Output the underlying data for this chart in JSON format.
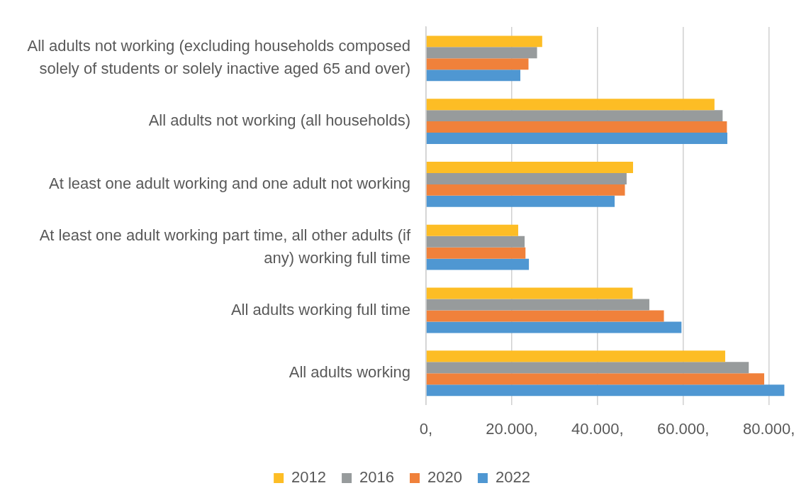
{
  "chart_data": {
    "type": "bar",
    "orientation": "horizontal",
    "categories": [
      "All adults not working (excluding households composed solely of students or solely inactive aged 65 and over)",
      "All adults not working (all households)",
      "At least one adult working and one adult not working",
      "At least one adult working part time, all other adults (if any) working full time",
      "All adults working full time",
      "All adults working"
    ],
    "series": [
      {
        "name": "2012",
        "color": "#fdbd25",
        "values": [
          27100,
          67300,
          48300,
          21500,
          48200,
          69800
        ]
      },
      {
        "name": "2016",
        "color": "#979b9c",
        "values": [
          25900,
          69200,
          46800,
          23000,
          52100,
          75300
        ]
      },
      {
        "name": "2020",
        "color": "#f0813b",
        "values": [
          23900,
          70200,
          46400,
          23200,
          55500,
          78900
        ]
      },
      {
        "name": "2022",
        "color": "#4f97d2",
        "values": [
          22000,
          70300,
          44000,
          24000,
          59600,
          83600
        ]
      }
    ],
    "xlim": [
      0,
      84000
    ],
    "xticks": [
      {
        "value": 0,
        "label": "0,"
      },
      {
        "value": 20000,
        "label": "20.000,"
      },
      {
        "value": 40000,
        "label": "40.000,"
      },
      {
        "value": 60000,
        "label": "60.000,"
      },
      {
        "value": 80000,
        "label": "80.000,"
      }
    ],
    "grid": "x",
    "legend": "bottom"
  }
}
